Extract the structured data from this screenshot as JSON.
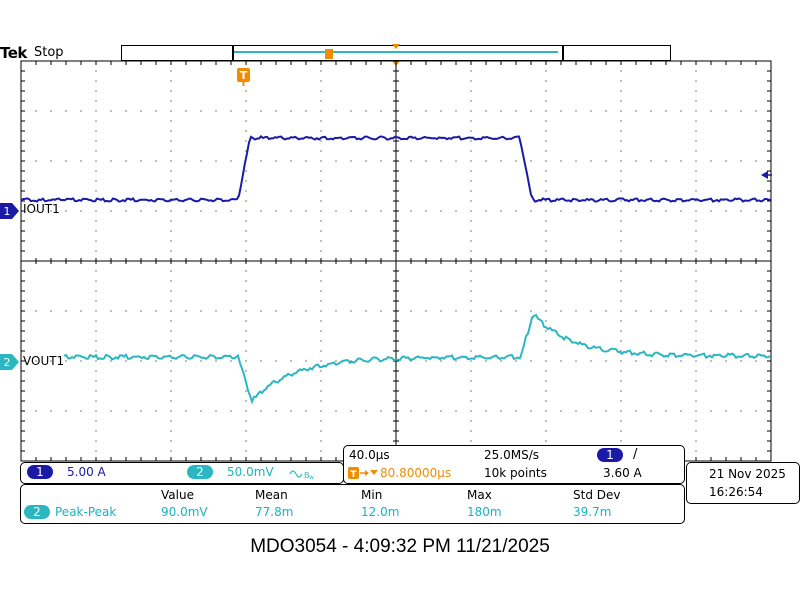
{
  "header": {
    "brand": "Tek",
    "status": "Stop"
  },
  "channels": {
    "ch1": {
      "number": "1",
      "label": "IOUT1",
      "color": "#1a1aa6",
      "scale": "5.00 A"
    },
    "ch2": {
      "number": "2",
      "label": "VOUT1",
      "color": "#2ab7c2",
      "scale": "50.0mV",
      "bw_icon": "bandwidth-limit-icon"
    }
  },
  "timebase": {
    "horizontal_scale": "40.0µs",
    "sample_rate": "25.0MS/s",
    "trigger_delay": "80.80000µs",
    "record_length": "10k points",
    "trigger_channel": "1",
    "trigger_slope": "/",
    "trigger_level": "3.60 A"
  },
  "clock": {
    "date": "21 Nov 2025",
    "time": "16:26:54"
  },
  "measurements": {
    "headers": [
      "Value",
      "Mean",
      "Min",
      "Max",
      "Std Dev"
    ],
    "rows": [
      {
        "channel": "2",
        "name": "Peak-Peak",
        "value": "90.0mV",
        "mean": "77.8m",
        "min": "12.0m",
        "max": "180m",
        "std_dev": "39.7m"
      }
    ]
  },
  "footer": {
    "caption": "MDO3054 - 4:09:32 PM   11/21/2025"
  },
  "markers": {
    "trigger_marker": "T",
    "trigger_position_icon": "trigger-position-icon",
    "trigger_level_icon": "trigger-level-arrow-icon"
  },
  "colors": {
    "ch1": "#1a1aa6",
    "ch2": "#2ab7c2",
    "trigger": "#f08c00",
    "grid": "#000000"
  }
}
